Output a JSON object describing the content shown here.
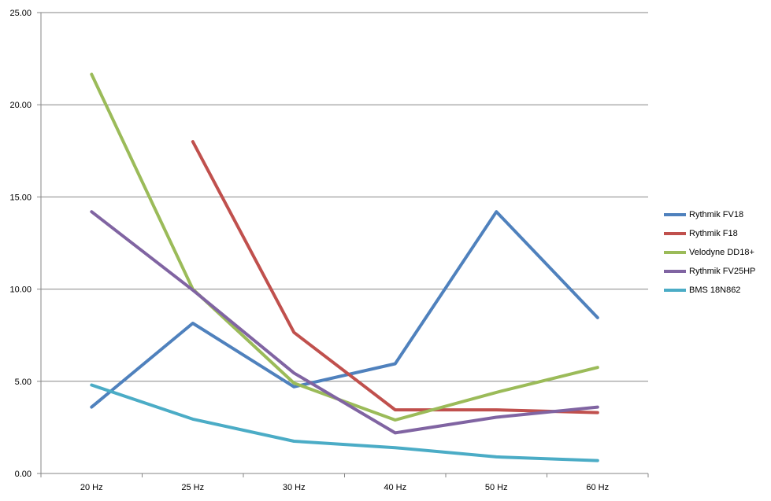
{
  "chart_data": {
    "type": "line",
    "categories": [
      "20 Hz",
      "25 Hz",
      "30 Hz",
      "40 Hz",
      "50 Hz",
      "60 Hz"
    ],
    "y_ticks": [
      "0.00",
      "5.00",
      "10.00",
      "15.00",
      "20.00",
      "25.00"
    ],
    "ylim": [
      0,
      25
    ],
    "grid": "horizontal",
    "legend_position": "right",
    "series": [
      {
        "name": "Rythmik FV18",
        "color": "#4F81BD",
        "values": [
          3.6,
          8.15,
          4.7,
          5.95,
          14.2,
          8.45
        ]
      },
      {
        "name": "Rythmik F18",
        "color": "#C0504D",
        "values": [
          null,
          18.0,
          7.65,
          3.45,
          3.45,
          3.3
        ]
      },
      {
        "name": "Velodyne DD18+",
        "color": "#9BBB59",
        "values": [
          21.65,
          10.0,
          4.9,
          2.9,
          4.4,
          5.75
        ]
      },
      {
        "name": "Rythmik FV25HP",
        "color": "#8064A2",
        "values": [
          14.2,
          9.95,
          5.45,
          2.2,
          3.05,
          3.6
        ]
      },
      {
        "name": "BMS 18N862",
        "color": "#4BACC6",
        "values": [
          4.8,
          2.95,
          1.75,
          1.4,
          0.9,
          0.7
        ]
      }
    ]
  }
}
